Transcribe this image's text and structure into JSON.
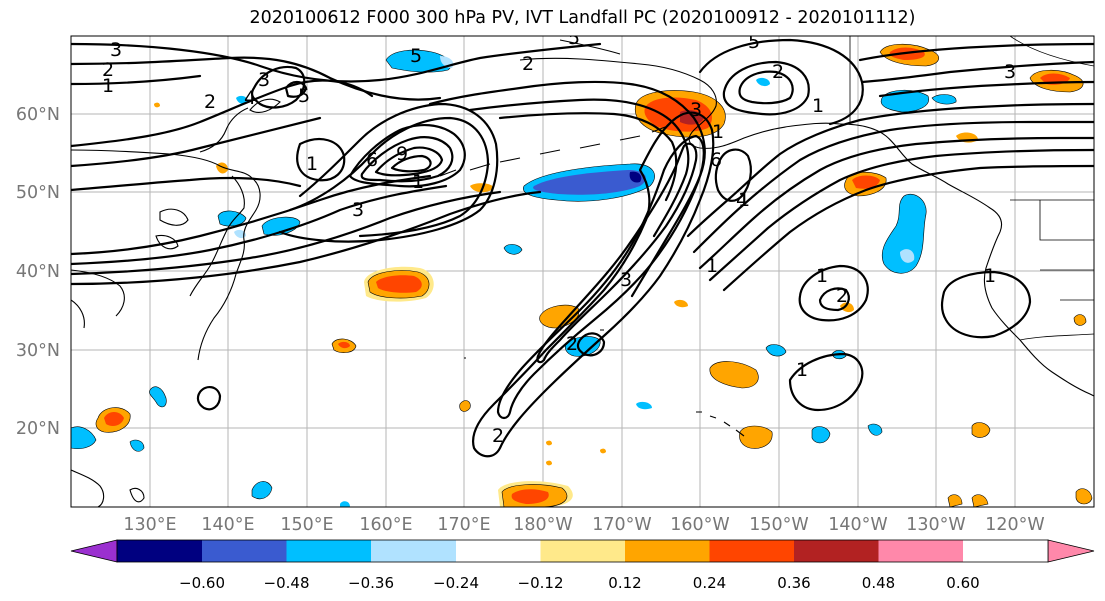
{
  "title": "2020100612 F000 300 hPa PV, IVT Landfall PC (2020100912 - 2020101112)",
  "latitude_labels": [
    "60°N",
    "50°N",
    "40°N",
    "30°N",
    "20°N"
  ],
  "longitude_labels": [
    "130°E",
    "140°E",
    "150°E",
    "160°E",
    "170°E",
    "180°W",
    "170°W",
    "160°W",
    "150°W",
    "140°W",
    "130°W",
    "120°W"
  ],
  "colorbar": {
    "tick_labels": [
      "−0.60",
      "−0.48",
      "−0.36",
      "−0.24",
      "−0.12",
      "0.12",
      "0.24",
      "0.36",
      "0.48",
      "0.60"
    ],
    "colors": [
      "#9b30d0",
      "#000080",
      "#3a5bd0",
      "#00bfff",
      "#b0e2ff",
      "#ffffff",
      "#ffe98a",
      "#ffa500",
      "#ff4500",
      "#b22222",
      "#ff88aa"
    ]
  },
  "contour_labels": [
    "3",
    "2",
    "1",
    "2",
    "4",
    "3",
    "5",
    "1",
    "6",
    "9",
    "1",
    "3",
    "5",
    "5",
    "2",
    "3",
    "1",
    "6",
    "1",
    "5",
    "4",
    "1",
    "3",
    "2",
    "1",
    "2",
    "1",
    "1",
    "1",
    "2",
    "2",
    "3"
  ],
  "fill_colors": {
    "orange_outer": "#ffe98a",
    "orange_mid": "#ffa500",
    "orange_core": "#ff4500",
    "red_core": "#b22222",
    "blue_outer": "#b0e2ff",
    "blue_mid": "#00bfff",
    "blue_core": "#3a5bd0",
    "navy_core": "#000080"
  }
}
